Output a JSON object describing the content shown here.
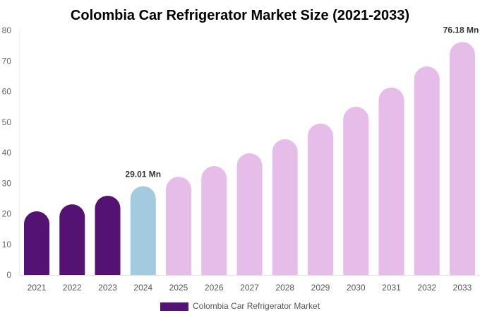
{
  "chart_data": {
    "type": "bar",
    "title": "Colombia Car Refrigerator Market Size (2021-2033)",
    "categories": [
      "2021",
      "2022",
      "2023",
      "2024",
      "2025",
      "2026",
      "2027",
      "2028",
      "2029",
      "2030",
      "2031",
      "2032",
      "2033"
    ],
    "series": [
      {
        "name": "Colombia Car Refrigerator Market",
        "values": [
          20.8,
          23.1,
          25.9,
          29.01,
          32.1,
          35.6,
          39.8,
          44.4,
          49.5,
          55.0,
          61.3,
          68.2,
          76.18
        ]
      }
    ],
    "data_labels": {
      "3": "29.01 Mn",
      "12": "76.18 Mn"
    },
    "ylim": [
      0,
      80
    ],
    "yticks": [
      "0",
      "10",
      "20",
      "30",
      "40",
      "50",
      "60",
      "70",
      "80"
    ],
    "grid": false,
    "legend": "bottom",
    "colors": {
      "historical": "#541273",
      "current": "#a3cadf",
      "forecast": "#e6bde9"
    }
  }
}
